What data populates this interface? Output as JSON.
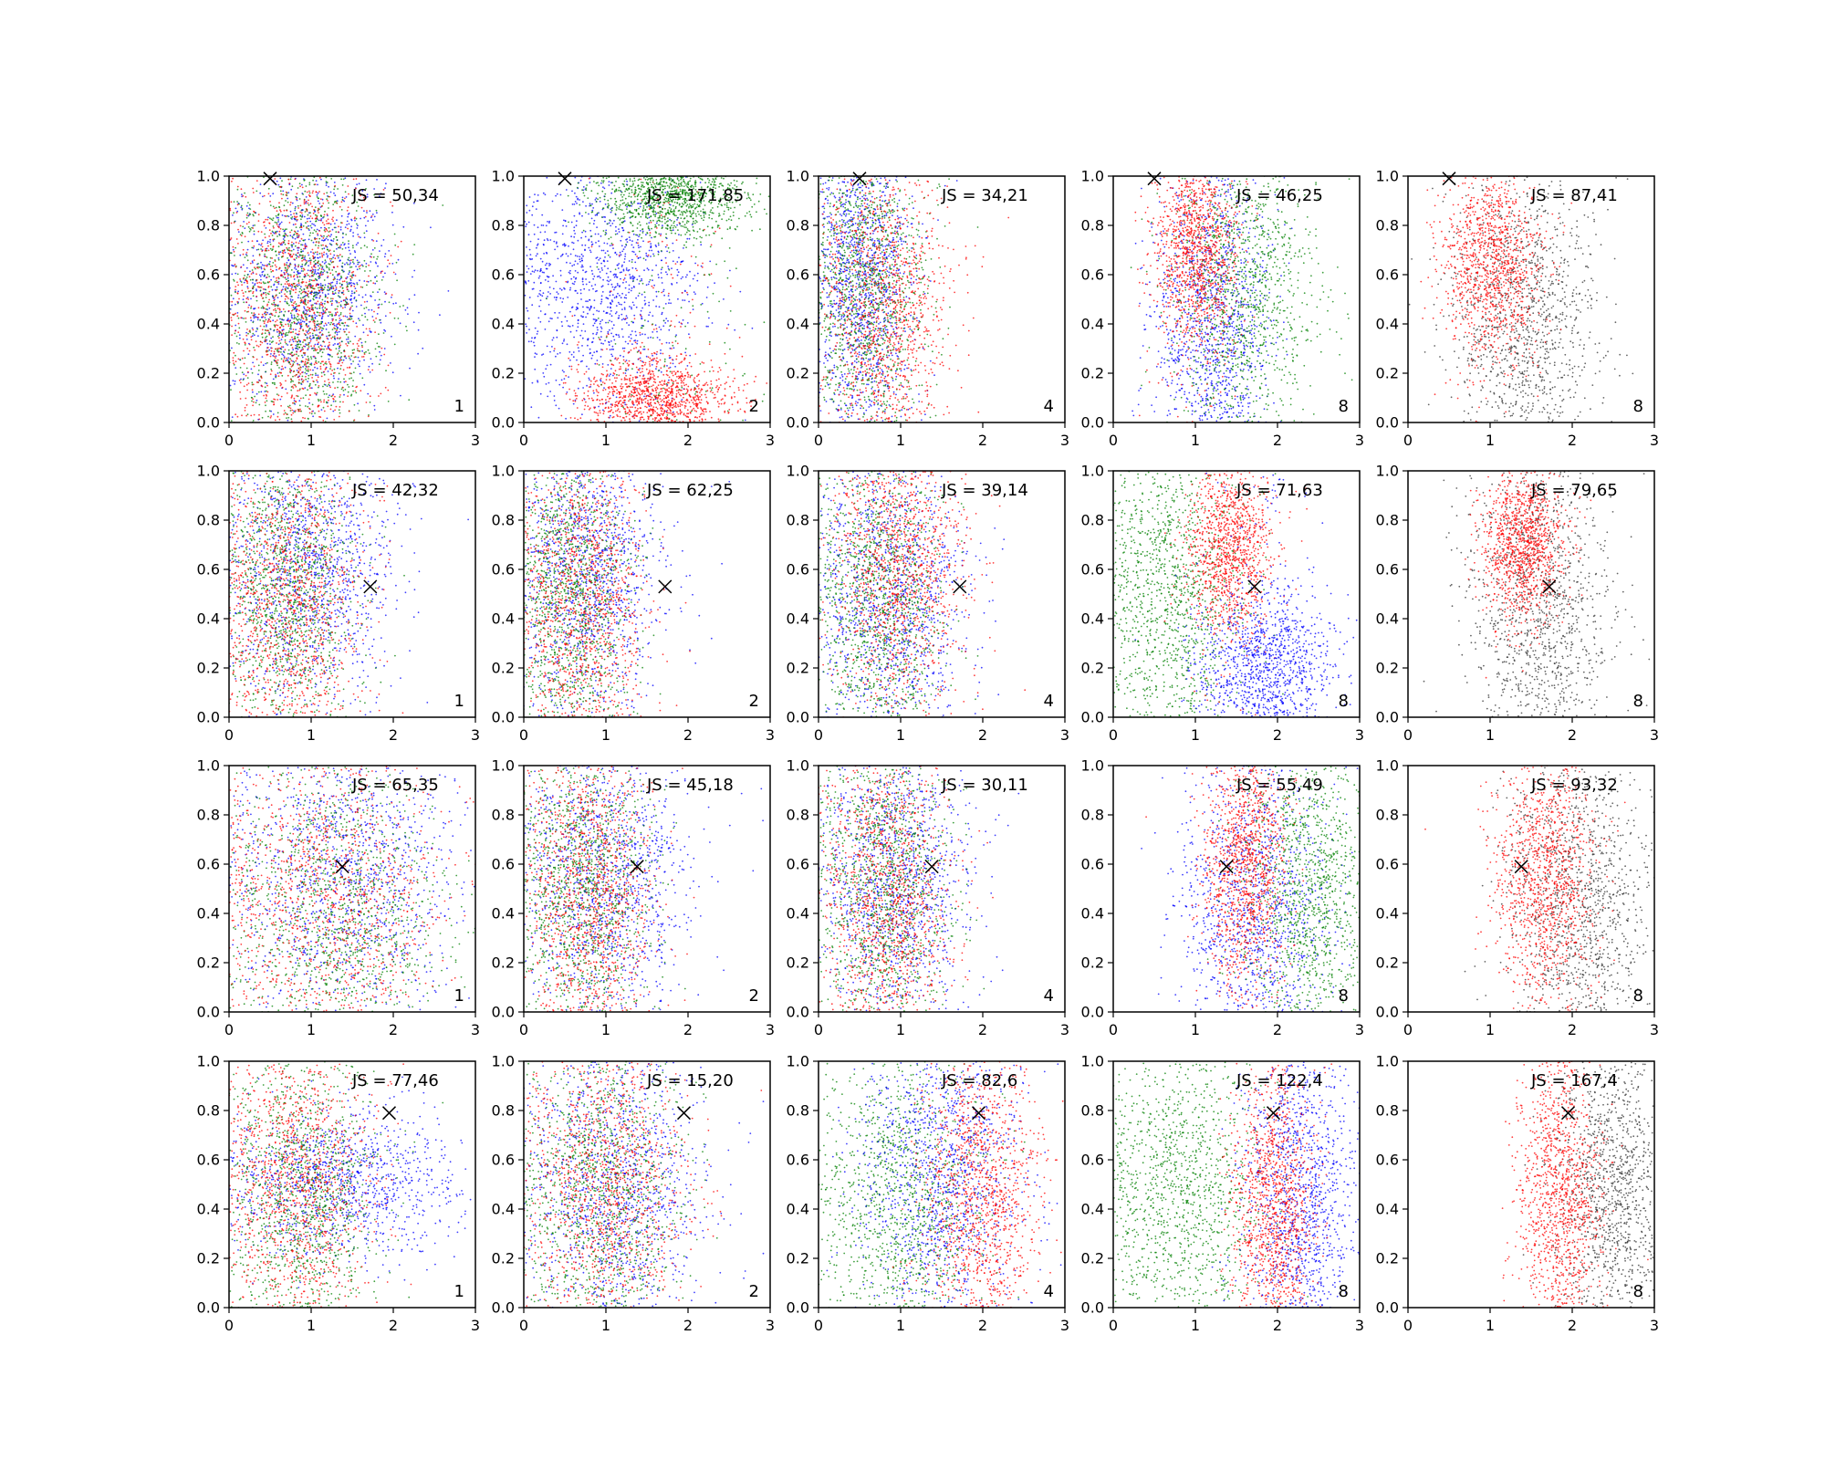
{
  "colors": {
    "blue": "#0000ff",
    "green": "#008000",
    "red": "#ff0000",
    "gray": "#333333",
    "marker": "#000000",
    "axes": "#000000"
  },
  "chart_data": {
    "type": "scatter",
    "layout_grid": {
      "rows": 4,
      "cols": 5
    },
    "xlim": [
      0,
      3
    ],
    "ylim": [
      0,
      1
    ],
    "xticks": [
      "0",
      "1",
      "2",
      "3"
    ],
    "yticks": [
      "0.0",
      "0.2",
      "0.4",
      "0.6",
      "0.8",
      "1.0"
    ],
    "grid": false,
    "legend": "none",
    "marker_symbol": "x",
    "rows": [
      {
        "marker": {
          "x": 0.5,
          "y": 0.99
        },
        "panels": [
          {
            "js_label": "JS = 50,34",
            "count_label": "1",
            "colors": [
              "blue",
              "green",
              "red"
            ],
            "clusters": [
              {
                "color": "blue",
                "center": [
                  1.0,
                  0.55
                ],
                "spread": [
                  0.5,
                  0.25
                ]
              },
              {
                "color": "green",
                "center": [
                  0.9,
                  0.5
                ],
                "spread": [
                  0.45,
                  0.3
                ]
              },
              {
                "color": "red",
                "center": [
                  0.85,
                  0.45
                ],
                "spread": [
                  0.45,
                  0.32
                ]
              }
            ]
          },
          {
            "js_label": "JS = 171,85",
            "count_label": "2",
            "colors": [
              "blue",
              "green",
              "red"
            ],
            "clusters": [
              {
                "color": "blue",
                "center": [
                  1.0,
                  0.55
                ],
                "spread": [
                  0.6,
                  0.25
                ]
              },
              {
                "color": "red",
                "center": [
                  1.6,
                  0.1
                ],
                "spread": [
                  0.45,
                  0.08
                ]
              },
              {
                "color": "green",
                "center": [
                  1.8,
                  0.92
                ],
                "spread": [
                  0.45,
                  0.08
                ]
              }
            ]
          },
          {
            "js_label": "JS = 34,21",
            "count_label": "4",
            "colors": [
              "blue",
              "green",
              "red"
            ],
            "clusters": [
              {
                "color": "blue",
                "center": [
                  0.55,
                  0.6
                ],
                "spread": [
                  0.3,
                  0.3
                ]
              },
              {
                "color": "green",
                "center": [
                  0.6,
                  0.55
                ],
                "spread": [
                  0.35,
                  0.3
                ]
              },
              {
                "color": "red",
                "center": [
                  0.8,
                  0.45
                ],
                "spread": [
                  0.4,
                  0.3
                ]
              }
            ]
          },
          {
            "js_label": "JS = 46,25",
            "count_label": "8",
            "colors": [
              "blue",
              "green",
              "red"
            ],
            "clusters": [
              {
                "color": "blue",
                "center": [
                  1.2,
                  0.4
                ],
                "spread": [
                  0.35,
                  0.3
                ]
              },
              {
                "color": "green",
                "center": [
                  1.6,
                  0.55
                ],
                "spread": [
                  0.45,
                  0.3
                ]
              },
              {
                "color": "red",
                "center": [
                  1.0,
                  0.7
                ],
                "spread": [
                  0.25,
                  0.2
                ]
              }
            ]
          },
          {
            "js_label": "JS = 87,41",
            "count_label": "8",
            "colors": [
              "gray",
              "red"
            ],
            "clusters": [
              {
                "color": "gray",
                "center": [
                  1.4,
                  0.4
                ],
                "spread": [
                  0.45,
                  0.3
                ]
              },
              {
                "color": "red",
                "center": [
                  1.0,
                  0.65
                ],
                "spread": [
                  0.3,
                  0.2
                ]
              }
            ]
          }
        ]
      },
      {
        "marker": {
          "x": 1.72,
          "y": 0.53
        },
        "panels": [
          {
            "js_label": "JS = 42,32",
            "count_label": "1",
            "colors": [
              "blue",
              "green",
              "red"
            ],
            "clusters": [
              {
                "color": "blue",
                "center": [
                  1.0,
                  0.6
                ],
                "spread": [
                  0.5,
                  0.25
                ]
              },
              {
                "color": "green",
                "center": [
                  0.7,
                  0.55
                ],
                "spread": [
                  0.4,
                  0.3
                ]
              },
              {
                "color": "red",
                "center": [
                  0.75,
                  0.45
                ],
                "spread": [
                  0.45,
                  0.32
                ]
              }
            ]
          },
          {
            "js_label": "JS = 62,25",
            "count_label": "2",
            "colors": [
              "blue",
              "green",
              "red"
            ],
            "clusters": [
              {
                "color": "blue",
                "center": [
                  0.8,
                  0.6
                ],
                "spread": [
                  0.45,
                  0.28
                ]
              },
              {
                "color": "green",
                "center": [
                  0.6,
                  0.5
                ],
                "spread": [
                  0.35,
                  0.3
                ]
              },
              {
                "color": "red",
                "center": [
                  0.7,
                  0.45
                ],
                "spread": [
                  0.4,
                  0.32
                ]
              }
            ]
          },
          {
            "js_label": "JS = 39,14",
            "count_label": "4",
            "colors": [
              "blue",
              "green",
              "red"
            ],
            "clusters": [
              {
                "color": "blue",
                "center": [
                  0.9,
                  0.5
                ],
                "spread": [
                  0.45,
                  0.3
                ]
              },
              {
                "color": "green",
                "center": [
                  0.75,
                  0.45
                ],
                "spread": [
                  0.4,
                  0.3
                ]
              },
              {
                "color": "red",
                "center": [
                  1.0,
                  0.65
                ],
                "spread": [
                  0.4,
                  0.28
                ]
              }
            ]
          },
          {
            "js_label": "JS = 71,63",
            "count_label": "8",
            "colors": [
              "blue",
              "green",
              "red"
            ],
            "clusters": [
              {
                "color": "green",
                "center": [
                  0.7,
                  0.5
                ],
                "spread": [
                  0.45,
                  0.3
                ]
              },
              {
                "color": "red",
                "center": [
                  1.4,
                  0.7
                ],
                "spread": [
                  0.25,
                  0.18
                ]
              },
              {
                "color": "blue",
                "center": [
                  1.85,
                  0.2
                ],
                "spread": [
                  0.4,
                  0.15
                ]
              }
            ]
          },
          {
            "js_label": "JS = 79,65",
            "count_label": "8",
            "colors": [
              "gray",
              "red"
            ],
            "clusters": [
              {
                "color": "gray",
                "center": [
                  1.6,
                  0.45
                ],
                "spread": [
                  0.45,
                  0.32
                ]
              },
              {
                "color": "red",
                "center": [
                  1.4,
                  0.7
                ],
                "spread": [
                  0.25,
                  0.15
                ]
              }
            ]
          }
        ]
      },
      {
        "marker": {
          "x": 1.38,
          "y": 0.59
        },
        "panels": [
          {
            "js_label": "JS = 65,35",
            "count_label": "1",
            "colors": [
              "blue",
              "green",
              "red"
            ],
            "clusters": [
              {
                "color": "blue",
                "center": [
                  1.4,
                  0.55
                ],
                "spread": [
                  0.7,
                  0.28
                ]
              },
              {
                "color": "green",
                "center": [
                  1.3,
                  0.4
                ],
                "spread": [
                  0.65,
                  0.3
                ]
              },
              {
                "color": "red",
                "center": [
                  1.2,
                  0.45
                ],
                "spread": [
                  0.7,
                  0.3
                ]
              }
            ]
          },
          {
            "js_label": "JS = 45,18",
            "count_label": "2",
            "colors": [
              "blue",
              "green",
              "red"
            ],
            "clusters": [
              {
                "color": "blue",
                "center": [
                  1.0,
                  0.55
                ],
                "spread": [
                  0.5,
                  0.28
                ]
              },
              {
                "color": "green",
                "center": [
                  0.75,
                  0.5
                ],
                "spread": [
                  0.4,
                  0.3
                ]
              },
              {
                "color": "red",
                "center": [
                  0.8,
                  0.45
                ],
                "spread": [
                  0.4,
                  0.32
                ]
              }
            ]
          },
          {
            "js_label": "JS = 30,11",
            "count_label": "4",
            "colors": [
              "blue",
              "green",
              "red"
            ],
            "clusters": [
              {
                "color": "blue",
                "center": [
                  0.95,
                  0.55
                ],
                "spread": [
                  0.45,
                  0.28
                ]
              },
              {
                "color": "green",
                "center": [
                  0.8,
                  0.5
                ],
                "spread": [
                  0.4,
                  0.3
                ]
              },
              {
                "color": "red",
                "center": [
                  0.85,
                  0.45
                ],
                "spread": [
                  0.4,
                  0.32
                ]
              }
            ]
          },
          {
            "js_label": "JS = 55,49",
            "count_label": "8",
            "colors": [
              "blue",
              "green",
              "red"
            ],
            "clusters": [
              {
                "color": "blue",
                "center": [
                  1.7,
                  0.4
                ],
                "spread": [
                  0.45,
                  0.3
                ]
              },
              {
                "color": "green",
                "center": [
                  2.4,
                  0.5
                ],
                "spread": [
                  0.4,
                  0.3
                ]
              },
              {
                "color": "red",
                "center": [
                  1.6,
                  0.6
                ],
                "spread": [
                  0.25,
                  0.25
                ]
              }
            ]
          },
          {
            "js_label": "JS = 93,32",
            "count_label": "8",
            "colors": [
              "gray",
              "red"
            ],
            "clusters": [
              {
                "color": "gray",
                "center": [
                  2.1,
                  0.45
                ],
                "spread": [
                  0.45,
                  0.3
                ]
              },
              {
                "color": "red",
                "center": [
                  1.65,
                  0.55
                ],
                "spread": [
                  0.3,
                  0.25
                ]
              }
            ]
          }
        ]
      },
      {
        "marker": {
          "x": 1.95,
          "y": 0.79
        },
        "panels": [
          {
            "js_label": "JS = 77,46",
            "count_label": "1",
            "colors": [
              "blue",
              "green",
              "red"
            ],
            "clusters": [
              {
                "color": "blue",
                "center": [
                  1.4,
                  0.5
                ],
                "spread": [
                  0.7,
                  0.15
                ]
              },
              {
                "color": "green",
                "center": [
                  0.9,
                  0.45
                ],
                "spread": [
                  0.45,
                  0.3
                ]
              },
              {
                "color": "red",
                "center": [
                  0.85,
                  0.5
                ],
                "spread": [
                  0.45,
                  0.3
                ]
              }
            ]
          },
          {
            "js_label": "JS = 15,20",
            "count_label": "2",
            "colors": [
              "blue",
              "green",
              "red"
            ],
            "clusters": [
              {
                "color": "blue",
                "center": [
                  1.1,
                  0.5
                ],
                "spread": [
                  0.55,
                  0.28
                ]
              },
              {
                "color": "green",
                "center": [
                  0.95,
                  0.45
                ],
                "spread": [
                  0.5,
                  0.3
                ]
              },
              {
                "color": "red",
                "center": [
                  1.0,
                  0.5
                ],
                "spread": [
                  0.5,
                  0.3
                ]
              }
            ]
          },
          {
            "js_label": "JS = 82,6",
            "count_label": "4",
            "colors": [
              "blue",
              "green",
              "red"
            ],
            "clusters": [
              {
                "color": "green",
                "center": [
                  1.0,
                  0.45
                ],
                "spread": [
                  0.5,
                  0.3
                ]
              },
              {
                "color": "blue",
                "center": [
                  1.5,
                  0.55
                ],
                "spread": [
                  0.5,
                  0.3
                ]
              },
              {
                "color": "red",
                "center": [
                  2.0,
                  0.45
                ],
                "spread": [
                  0.35,
                  0.3
                ]
              }
            ]
          },
          {
            "js_label": "JS = 122,4",
            "count_label": "8",
            "colors": [
              "blue",
              "green",
              "red"
            ],
            "clusters": [
              {
                "color": "green",
                "center": [
                  0.85,
                  0.45
                ],
                "spread": [
                  0.5,
                  0.3
                ]
              },
              {
                "color": "blue",
                "center": [
                  2.3,
                  0.45
                ],
                "spread": [
                  0.35,
                  0.3
                ]
              },
              {
                "color": "red",
                "center": [
                  1.95,
                  0.4
                ],
                "spread": [
                  0.25,
                  0.28
                ]
              }
            ]
          },
          {
            "js_label": "JS = 167,4",
            "count_label": "8",
            "colors": [
              "gray",
              "red"
            ],
            "clusters": [
              {
                "color": "gray",
                "center": [
                  2.5,
                  0.5
                ],
                "spread": [
                  0.35,
                  0.3
                ]
              },
              {
                "color": "red",
                "center": [
                  1.85,
                  0.45
                ],
                "spread": [
                  0.25,
                  0.28
                ]
              }
            ]
          }
        ]
      }
    ]
  }
}
